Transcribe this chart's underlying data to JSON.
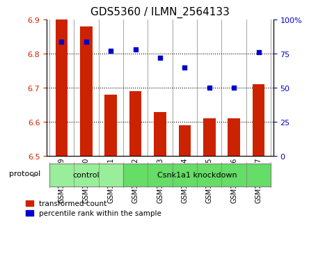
{
  "title": "GDS5360 / ILMN_2564133",
  "samples": [
    "GSM1278259",
    "GSM1278260",
    "GSM1278261",
    "GSM1278262",
    "GSM1278263",
    "GSM1278264",
    "GSM1278265",
    "GSM1278266",
    "GSM1278267"
  ],
  "bar_values": [
    6.9,
    6.88,
    6.68,
    6.69,
    6.63,
    6.59,
    6.61,
    6.61,
    6.71
  ],
  "percentile_values": [
    84,
    84,
    77,
    78,
    72,
    65,
    50,
    50,
    76
  ],
  "ylim_left": [
    6.5,
    6.9
  ],
  "ylim_right": [
    0,
    100
  ],
  "yticks_left": [
    6.5,
    6.6,
    6.7,
    6.8,
    6.9
  ],
  "yticks_right": [
    0,
    25,
    50,
    75,
    100
  ],
  "bar_color": "#cc2200",
  "dot_color": "#0000cc",
  "bar_width": 0.5,
  "groups": [
    {
      "label": "control",
      "indices": [
        0,
        1,
        2
      ],
      "color": "#99ee99"
    },
    {
      "label": "Csnk1a1 knockdown",
      "indices": [
        3,
        4,
        5,
        6,
        7,
        8
      ],
      "color": "#66dd66"
    }
  ],
  "protocol_label": "protocol",
  "legend_bar_label": "transformed count",
  "legend_dot_label": "percentile rank within the sample",
  "background_color": "#ffffff",
  "grid_color": "#000000",
  "tick_color_left": "#cc2200",
  "tick_color_right": "#0000cc"
}
